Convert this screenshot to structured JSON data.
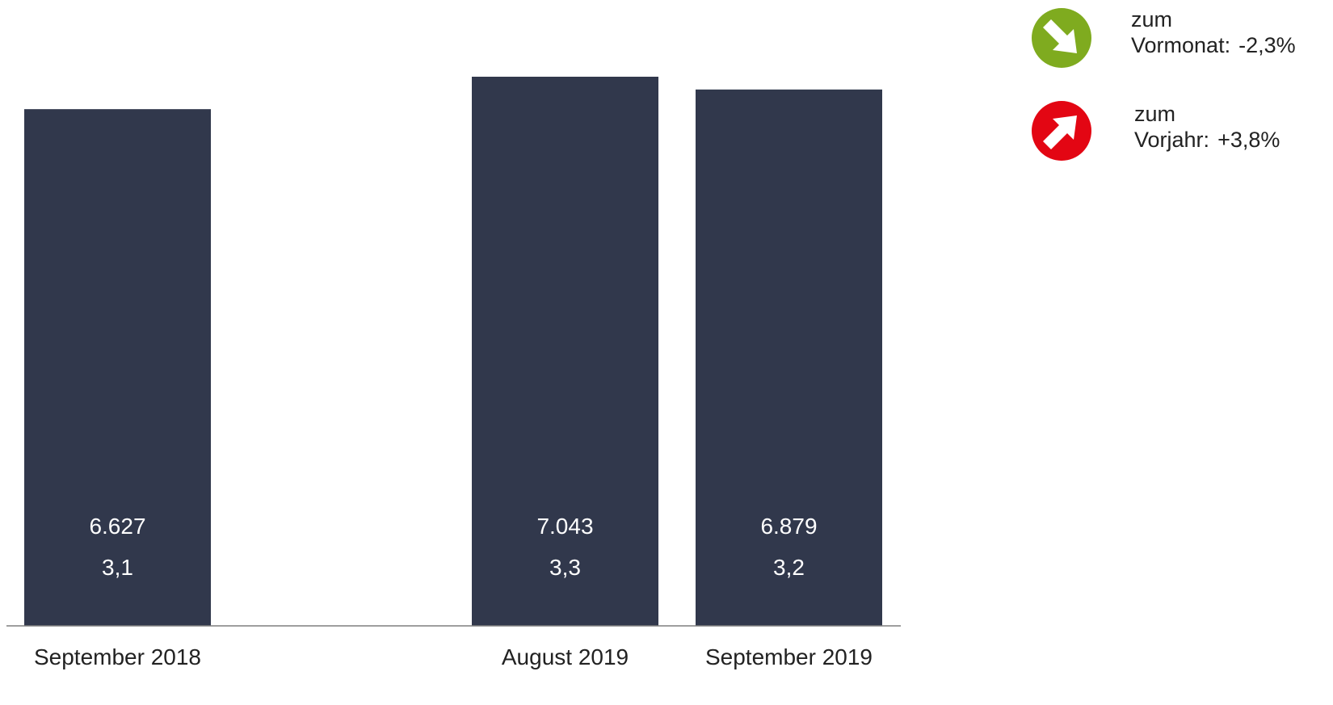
{
  "chart_data": {
    "type": "bar",
    "categories": [
      "September 2018",
      "",
      "August 2019",
      "September 2019"
    ],
    "series": [
      {
        "values": [
          6627,
          null,
          7043,
          6879
        ],
        "labels": [
          "6.627",
          "",
          "7.043",
          "6.879"
        ]
      },
      {
        "values": [
          3.1,
          null,
          3.3,
          3.2
        ],
        "labels": [
          "3,1",
          "",
          "3,3",
          "3,2"
        ]
      }
    ],
    "bar_color": "#31384c",
    "grid": false,
    "ylim": [
      0,
      7500
    ]
  },
  "legend": {
    "items": [
      {
        "icon": "arrow-down-right-icon",
        "color": "#7fab1f",
        "line1": "zum",
        "label": "Vormonat:",
        "value": "-2,3%"
      },
      {
        "icon": "arrow-up-right-icon",
        "color": "#e30613",
        "line1": "zum",
        "label": "Vorjahr:",
        "value": "+3,8%"
      }
    ]
  }
}
